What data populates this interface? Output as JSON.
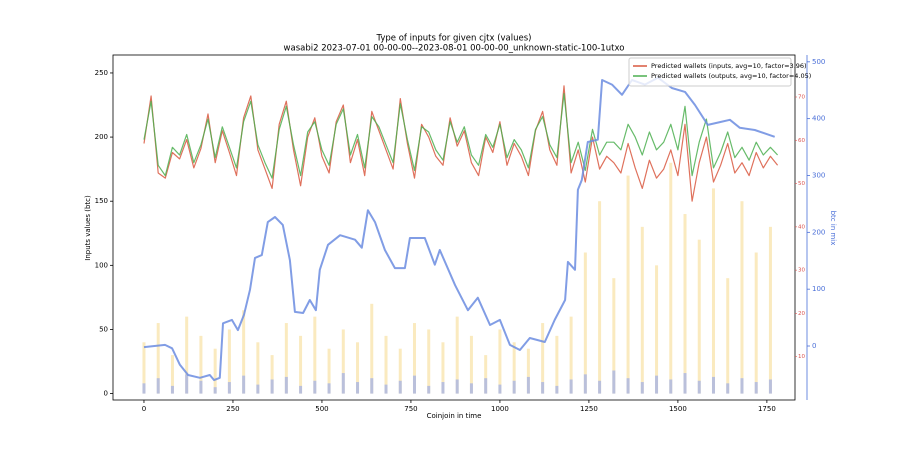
{
  "chart_data": {
    "type": "line",
    "title": "Type of inputs for given cjtx (values)",
    "subtitle": "wasabi2 2023-07-01 00-00-00--2023-08-01 00-00-00_unknown-static-100-1utxo",
    "xlabel": "Coinjoin in time",
    "ylabel": "Inputs values (btc)",
    "y2label": "btc in mix",
    "xlim": [
      -87,
      1829
    ],
    "ylim": [
      -5,
      264
    ],
    "y2lim": [
      -95,
      512
    ],
    "y3lim": [
      0,
      79.7
    ],
    "xticks": [
      0,
      250,
      500,
      750,
      1000,
      1250,
      1500,
      1750
    ],
    "yticks": [
      0,
      50,
      100,
      150,
      200,
      250
    ],
    "y2ticks": [
      0,
      100,
      200,
      300,
      400,
      500
    ],
    "y3ticks": [
      10,
      20,
      30,
      40,
      50,
      60,
      70
    ],
    "y2color": "#4a6fd8",
    "y3color": "#d9534f",
    "legend": "upper right",
    "series": [
      {
        "name": "Predicted wallets (inputs, avg=10, factor=3.96)",
        "color": "#d9583f",
        "x": [
          0,
          20,
          40,
          60,
          80,
          100,
          120,
          140,
          160,
          180,
          200,
          220,
          240,
          260,
          280,
          300,
          320,
          340,
          360,
          380,
          400,
          420,
          440,
          460,
          480,
          500,
          520,
          540,
          560,
          580,
          600,
          620,
          640,
          660,
          680,
          700,
          720,
          740,
          760,
          780,
          800,
          820,
          840,
          860,
          880,
          900,
          920,
          940,
          960,
          980,
          1000,
          1020,
          1040,
          1060,
          1080,
          1100,
          1120,
          1140,
          1160,
          1180,
          1200,
          1220,
          1240,
          1260,
          1280,
          1300,
          1320,
          1340,
          1360,
          1380,
          1400,
          1420,
          1440,
          1460,
          1480,
          1500,
          1520,
          1540,
          1560,
          1580,
          1600,
          1620,
          1640,
          1660,
          1680,
          1700,
          1720,
          1740,
          1760,
          1780
        ],
        "values": [
          195,
          232,
          172,
          168,
          188,
          183,
          198,
          176,
          191,
          218,
          180,
          205,
          188,
          170,
          215,
          232,
          190,
          175,
          160,
          210,
          228,
          190,
          162,
          200,
          215,
          185,
          172,
          212,
          225,
          180,
          198,
          170,
          220,
          205,
          190,
          175,
          230,
          195,
          168,
          210,
          200,
          185,
          178,
          215,
          193,
          205,
          180,
          170,
          200,
          188,
          212,
          178,
          195,
          185,
          170,
          205,
          220,
          190,
          178,
          240,
          172,
          190,
          165,
          200,
          175,
          185,
          180,
          172,
          195,
          176,
          160,
          182,
          168,
          175,
          190,
          170,
          210,
          150,
          180,
          200,
          165,
          178,
          195,
          172,
          180,
          170,
          188,
          176,
          185,
          178
        ]
      },
      {
        "name": "Predicted wallets (outputs, avg=10, factor=4.05)",
        "color": "#4caf50",
        "x": [
          0,
          20,
          40,
          60,
          80,
          100,
          120,
          140,
          160,
          180,
          200,
          220,
          240,
          260,
          280,
          300,
          320,
          340,
          360,
          380,
          400,
          420,
          440,
          460,
          480,
          500,
          520,
          540,
          560,
          580,
          600,
          620,
          640,
          660,
          680,
          700,
          720,
          740,
          760,
          780,
          800,
          820,
          840,
          860,
          880,
          900,
          920,
          940,
          960,
          980,
          1000,
          1020,
          1040,
          1060,
          1080,
          1100,
          1120,
          1140,
          1160,
          1180,
          1200,
          1220,
          1240,
          1260,
          1280,
          1300,
          1320,
          1340,
          1360,
          1380,
          1400,
          1420,
          1440,
          1460,
          1480,
          1500,
          1520,
          1540,
          1560,
          1580,
          1600,
          1620,
          1640,
          1660,
          1680,
          1700,
          1720,
          1740,
          1760,
          1780
        ],
        "values": [
          198,
          228,
          178,
          170,
          192,
          186,
          202,
          180,
          194,
          214,
          184,
          208,
          192,
          176,
          212,
          228,
          194,
          180,
          168,
          206,
          224,
          194,
          170,
          204,
          212,
          190,
          178,
          210,
          222,
          186,
          202,
          176,
          216,
          208,
          194,
          180,
          226,
          198,
          174,
          208,
          204,
          190,
          182,
          212,
          196,
          208,
          186,
          178,
          202,
          192,
          210,
          184,
          198,
          190,
          176,
          206,
          216,
          194,
          184,
          234,
          180,
          196,
          174,
          206,
          186,
          196,
          196,
          190,
          210,
          200,
          186,
          204,
          190,
          196,
          210,
          190,
          224,
          170,
          196,
          214,
          176,
          188,
          204,
          184,
          192,
          182,
          196,
          186,
          192,
          186
        ]
      },
      {
        "color": "#6b8ce0",
        "axis": "y2",
        "x": [
          0,
          59,
          79,
          101,
          124,
          157,
          185,
          197,
          213,
          222,
          247,
          264,
          281,
          298,
          312,
          331,
          348,
          368,
          390,
          410,
          424,
          447,
          466,
          483,
          494,
          517,
          551,
          593,
          612,
          629,
          649,
          677,
          705,
          733,
          747,
          789,
          817,
          831,
          874,
          910,
          938,
          972,
          1000,
          1028,
          1056,
          1084,
          1126,
          1154,
          1183,
          1191,
          1211,
          1219,
          1230,
          1247,
          1275,
          1287,
          1315,
          1343,
          1371,
          1407,
          1444,
          1483,
          1520,
          1548,
          1584,
          1618,
          1646,
          1674,
          1716,
          1772
        ],
        "values": [
          -2,
          2,
          -4,
          -33,
          -51,
          -56,
          -51,
          -60,
          -56,
          40,
          46,
          28,
          55,
          99,
          155,
          160,
          218,
          227,
          213,
          151,
          60,
          58,
          81,
          63,
          134,
          178,
          195,
          187,
          173,
          239,
          218,
          169,
          137,
          137,
          190,
          190,
          143,
          169,
          107,
          63,
          85,
          37,
          46,
          2,
          -7,
          14,
          7,
          46,
          81,
          148,
          134,
          275,
          292,
          359,
          363,
          468,
          460,
          442,
          468,
          460,
          472,
          454,
          447,
          424,
          389,
          394,
          398,
          384,
          380,
          368
        ]
      }
    ],
    "bars": [
      {
        "color": "#f7dc94",
        "x": [
          0,
          40,
          80,
          120,
          160,
          200,
          240,
          280,
          320,
          360,
          400,
          440,
          480,
          520,
          560,
          600,
          640,
          680,
          720,
          760,
          800,
          840,
          880,
          920,
          960,
          1000,
          1040,
          1080,
          1120,
          1160,
          1200,
          1240,
          1280,
          1320,
          1360,
          1400,
          1440,
          1480,
          1520,
          1560,
          1600,
          1640,
          1680,
          1720,
          1760
        ],
        "values": [
          40,
          55,
          30,
          60,
          45,
          35,
          50,
          65,
          40,
          30,
          55,
          45,
          60,
          35,
          50,
          40,
          70,
          45,
          35,
          55,
          50,
          40,
          60,
          45,
          30,
          50,
          40,
          35,
          55,
          45,
          60,
          110,
          150,
          90,
          170,
          130,
          100,
          180,
          140,
          120,
          160,
          90,
          150,
          110,
          130
        ]
      },
      {
        "color": "#8fa3ee",
        "x": [
          0,
          40,
          80,
          120,
          160,
          200,
          240,
          280,
          320,
          360,
          400,
          440,
          480,
          520,
          560,
          600,
          640,
          680,
          720,
          760,
          800,
          840,
          880,
          920,
          960,
          1000,
          1040,
          1080,
          1120,
          1160,
          1200,
          1240,
          1280,
          1320,
          1360,
          1400,
          1440,
          1480,
          1520,
          1560,
          1600,
          1640,
          1680,
          1720,
          1760
        ],
        "values": [
          8,
          12,
          6,
          15,
          10,
          5,
          9,
          14,
          7,
          11,
          13,
          6,
          10,
          8,
          16,
          9,
          12,
          7,
          10,
          14,
          6,
          9,
          11,
          8,
          12,
          7,
          10,
          13,
          9,
          6,
          11,
          15,
          10,
          18,
          12,
          9,
          14,
          11,
          16,
          10,
          13,
          8,
          12,
          9,
          11
        ]
      }
    ]
  }
}
